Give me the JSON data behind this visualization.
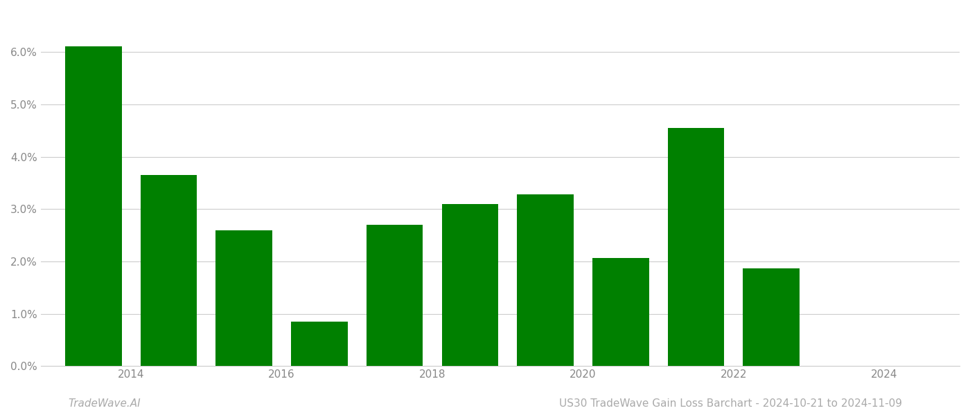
{
  "years": [
    2013,
    2014,
    2015,
    2016,
    2017,
    2018,
    2019,
    2020,
    2021,
    2022,
    2023
  ],
  "values": [
    6.11,
    3.65,
    2.6,
    0.85,
    2.7,
    3.1,
    3.28,
    2.07,
    4.55,
    1.87,
    0.0
  ],
  "bar_color": "#008000",
  "background_color": "#ffffff",
  "grid_color": "#cccccc",
  "tick_label_color": "#888888",
  "ylim": [
    0,
    6.8
  ],
  "yticks": [
    0.0,
    1.0,
    2.0,
    3.0,
    4.0,
    5.0,
    6.0
  ],
  "xtick_labels": [
    "2014",
    "2016",
    "2018",
    "2020",
    "2022",
    "2024"
  ],
  "xtick_positions": [
    2013.5,
    2015.5,
    2017.5,
    2019.5,
    2021.5,
    2023.5
  ],
  "xlim_left": 2012.3,
  "xlim_right": 2024.5,
  "footer_left": "TradeWave.AI",
  "footer_right": "US30 TradeWave Gain Loss Barchart - 2024-10-21 to 2024-11-09",
  "footer_color": "#aaaaaa",
  "footer_fontsize": 11,
  "bar_width": 0.75
}
